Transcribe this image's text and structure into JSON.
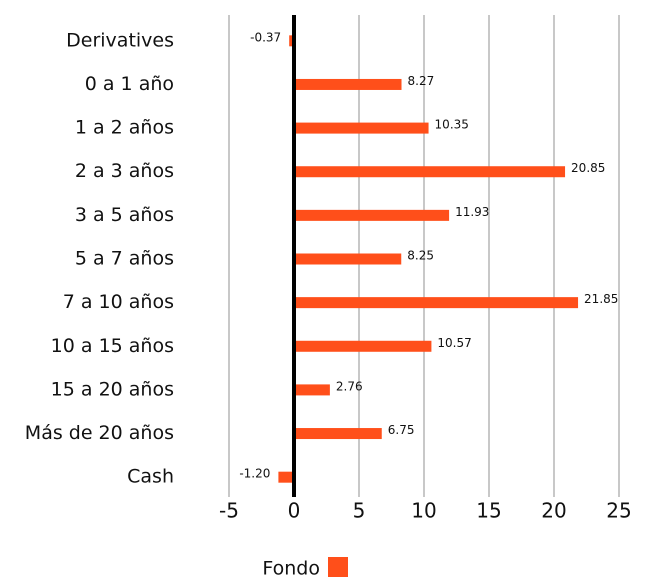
{
  "chart_data": {
    "type": "bar",
    "orientation": "horizontal",
    "categories": [
      "Derivatives",
      "0 a 1 año",
      "1 a 2 años",
      "2 a 3 años",
      "3 a 5 años",
      "5 a 7 años",
      "7 a 10 años",
      "10 a 15 años",
      "15 a 20 años",
      "Más de 20 años",
      "Cash"
    ],
    "series": [
      {
        "name": "Fondo",
        "color": "#ff4f1a",
        "values": [
          -0.37,
          8.27,
          10.35,
          20.85,
          11.93,
          8.25,
          21.85,
          10.57,
          2.76,
          6.75,
          -1.2
        ],
        "value_labels": [
          "-0.37",
          "8.27",
          "10.35",
          "20.85",
          "11.93",
          "8.25",
          "21.85",
          "10.57",
          "2.76",
          "6.75",
          "-1.20"
        ]
      }
    ],
    "xlim": [
      -5,
      25
    ],
    "xticks": [
      -5,
      0,
      5,
      10,
      15,
      20,
      25
    ],
    "grid": true,
    "legend": "bottom"
  }
}
